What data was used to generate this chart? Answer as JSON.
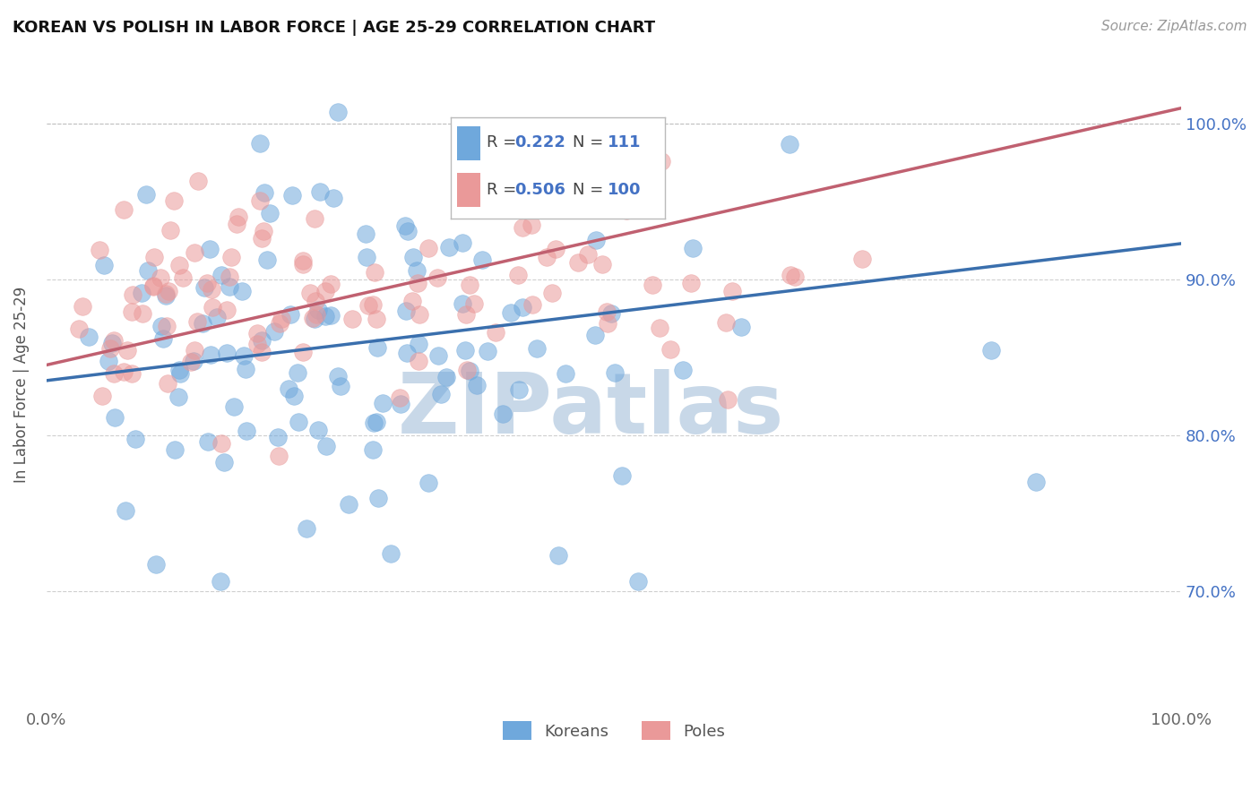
{
  "title": "KOREAN VS POLISH IN LABOR FORCE | AGE 25-29 CORRELATION CHART",
  "source": "Source: ZipAtlas.com",
  "ylabel": "In Labor Force | Age 25-29",
  "ytick_labels": [
    "70.0%",
    "80.0%",
    "90.0%",
    "100.0%"
  ],
  "ytick_values": [
    0.7,
    0.8,
    0.9,
    1.0
  ],
  "xlim": [
    0.0,
    1.0
  ],
  "ylim": [
    0.625,
    1.04
  ],
  "korean_color": "#6fa8dc",
  "polish_color": "#ea9999",
  "trend_korean_color": "#3a6fad",
  "trend_polish_color": "#c06070",
  "korean_R": 0.222,
  "korean_N": 111,
  "polish_R": 0.506,
  "polish_N": 100,
  "watermark": "ZIPatlas",
  "legend_label_korean": "Koreans",
  "legend_label_polish": "Poles",
  "legend_text_color": "#4472c4",
  "legend_border_color": "#cccccc",
  "grid_color": "#bbbbbb",
  "watermark_color": "#c8d8e8",
  "korean_trend_intercept": 0.835,
  "korean_trend_slope": 0.088,
  "polish_trend_intercept": 0.845,
  "polish_trend_slope": 0.165
}
